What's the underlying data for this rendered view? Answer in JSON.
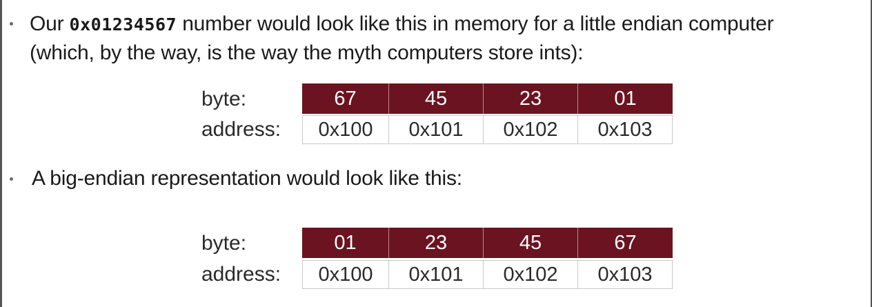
{
  "bullets": {
    "first": {
      "prefix": "Our ",
      "code": "0x01234567",
      "suffix": " number would look like this in memory for a little endian computer",
      "line2": "(which, by the way, is the way the myth computers store ints):"
    },
    "second": {
      "text": "A big-endian representation would look like this:"
    }
  },
  "little_endian": {
    "byte_label": "byte:",
    "address_label": "address:",
    "bytes": [
      "67",
      "45",
      "23",
      "01"
    ],
    "addresses": [
      "0x100",
      "0x101",
      "0x102",
      "0x103"
    ]
  },
  "big_endian": {
    "byte_label": "byte:",
    "address_label": "address:",
    "bytes": [
      "01",
      "23",
      "45",
      "67"
    ],
    "addresses": [
      "0x100",
      "0x101",
      "0x102",
      "0x103"
    ]
  },
  "colors": {
    "byte_fill": "#6b1320",
    "byte_text": "#ffffff",
    "border": "#c8c8c8"
  }
}
